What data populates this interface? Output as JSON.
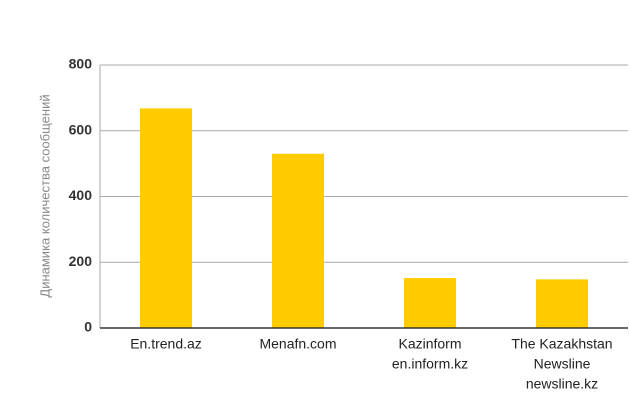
{
  "chart_data": {
    "type": "bar",
    "y_label": "Динамика количества сообщений",
    "categories": [
      [
        "En.trend.az"
      ],
      [
        "Menafn.com"
      ],
      [
        "Kazinform",
        "en.inform.kz"
      ],
      [
        "The Kazakhstan",
        "Newsline",
        "newsline.kz"
      ]
    ],
    "values": [
      668,
      530,
      152,
      148
    ],
    "color": "#ffcc00",
    "ylim": [
      0,
      800
    ],
    "yticks": [
      0,
      200,
      400,
      600,
      800
    ],
    "grid": true
  }
}
